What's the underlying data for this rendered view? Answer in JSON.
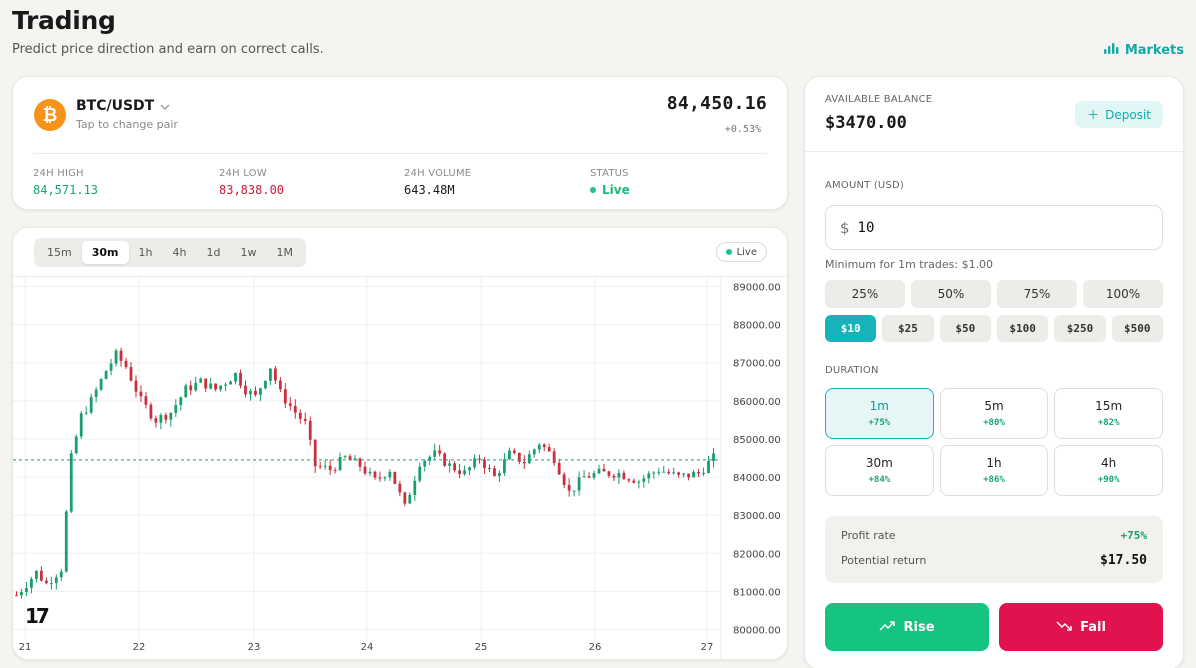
{
  "header": {
    "title": "Trading",
    "subtitle": "Predict price direction and earn on correct calls.",
    "markets_label": "Markets"
  },
  "ticker": {
    "coin_symbol": "₿",
    "pair": "BTC/USDT",
    "hint": "Tap to change pair",
    "price": "84,450.16",
    "change": "+0.53%",
    "stats": [
      {
        "label": "24H HIGH",
        "value": "84,571.13"
      },
      {
        "label": "24H LOW",
        "value": "83,838.00"
      },
      {
        "label": "24H VOLUME",
        "value": "643.48M"
      },
      {
        "label": "STATUS",
        "value": "Live"
      }
    ]
  },
  "chart": {
    "timeframes": [
      "15m",
      "30m",
      "1h",
      "4h",
      "1d",
      "1w",
      "1M"
    ],
    "active_timeframe": "30m",
    "live_label": "Live",
    "logo_text": "17",
    "colors": {
      "up": "#1a9e6c",
      "down": "#c9303f",
      "grid": "#efefef",
      "price_line": "#1fa06b"
    }
  },
  "chart_data": {
    "type": "candlestick",
    "x_ticks": [
      "21",
      "22",
      "23",
      "24",
      "25",
      "26",
      "27"
    ],
    "y_ticks": [
      "89000.00",
      "88000.00",
      "87000.00",
      "86000.00",
      "85000.00",
      "84000.00",
      "83000.00",
      "82000.00",
      "81000.00",
      "80000.00"
    ],
    "ylim": [
      79750,
      89250
    ],
    "current_price": 84450,
    "close_path": [
      [
        0,
        80900
      ],
      [
        4,
        81500
      ],
      [
        6,
        81200
      ],
      [
        9,
        81600
      ],
      [
        11,
        84500
      ],
      [
        13,
        85600
      ],
      [
        15,
        86000
      ],
      [
        18,
        86800
      ],
      [
        20,
        87200
      ],
      [
        22,
        86900
      ],
      [
        25,
        86000
      ],
      [
        28,
        85500
      ],
      [
        31,
        85700
      ],
      [
        34,
        86300
      ],
      [
        37,
        86500
      ],
      [
        40,
        86300
      ],
      [
        44,
        86700
      ],
      [
        46,
        86300
      ],
      [
        48,
        86100
      ],
      [
        51,
        86900
      ],
      [
        53,
        86200
      ],
      [
        56,
        85700
      ],
      [
        58,
        85400
      ],
      [
        60,
        84300
      ],
      [
        63,
        84200
      ],
      [
        66,
        84500
      ],
      [
        69,
        84300
      ],
      [
        72,
        83900
      ],
      [
        75,
        84200
      ],
      [
        78,
        83200
      ],
      [
        81,
        84400
      ],
      [
        84,
        84600
      ],
      [
        87,
        84300
      ],
      [
        90,
        84100
      ],
      [
        93,
        84500
      ],
      [
        96,
        84000
      ],
      [
        99,
        84600
      ],
      [
        102,
        84400
      ],
      [
        105,
        84900
      ],
      [
        108,
        84500
      ],
      [
        111,
        83600
      ],
      [
        114,
        84000
      ],
      [
        117,
        84100
      ],
      [
        121,
        84100
      ],
      [
        125,
        83900
      ],
      [
        129,
        84200
      ],
      [
        133,
        84000
      ],
      [
        137,
        84100
      ],
      [
        140,
        84500
      ]
    ]
  },
  "trade": {
    "balance_label": "AVAILABLE BALANCE",
    "balance": "$3470.00",
    "deposit_label": "Deposit",
    "amount_label": "AMOUNT (USD)",
    "currency_symbol": "$",
    "amount_value": "10",
    "min_note": "Minimum for 1m trades: $1.00",
    "percent_options": [
      "25%",
      "50%",
      "75%",
      "100%"
    ],
    "amount_presets": [
      "$10",
      "$25",
      "$50",
      "$100",
      "$250",
      "$500"
    ],
    "active_preset": "$10",
    "duration_label": "DURATION",
    "durations": [
      {
        "label": "1m",
        "payout": "+75%"
      },
      {
        "label": "5m",
        "payout": "+80%"
      },
      {
        "label": "15m",
        "payout": "+82%"
      },
      {
        "label": "30m",
        "payout": "+84%"
      },
      {
        "label": "1h",
        "payout": "+86%"
      },
      {
        "label": "4h",
        "payout": "+90%"
      }
    ],
    "active_duration": "1m",
    "profit_rate_label": "Profit rate",
    "profit_rate": "+75%",
    "potential_return_label": "Potential return",
    "potential_return": "$17.50",
    "rise_label": "Rise",
    "fall_label": "Fall"
  }
}
